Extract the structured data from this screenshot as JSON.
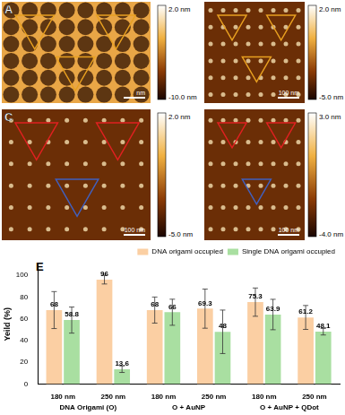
{
  "panels": [
    {
      "label": "A",
      "images": [
        {
          "colorbar": {
            "top": "2.0 nm",
            "bottom": "-10.0 nm"
          },
          "scale_bar": "nm"
        },
        {
          "colorbar": {
            "top": "2.0 nm",
            "bottom": "-5.0 nm"
          },
          "scale_bar": "100 nm"
        }
      ]
    },
    {
      "label": "C",
      "images": [
        {
          "colorbar": {
            "top": "2.0 nm",
            "bottom": "-5.0 nm"
          },
          "scale_bar": "100 nm"
        },
        {
          "colorbar": {
            "top": "3.0 nm",
            "bottom": "-4.0 nm"
          },
          "scale_bar": "100 nm"
        }
      ]
    }
  ],
  "chart_label": "E",
  "chart_data": {
    "type": "bar",
    "categories": [
      "180 nm",
      "250 nm",
      "180 nm",
      "250 nm",
      "180 nm",
      "250 nm"
    ],
    "groups": [
      "DNA Origami (O)",
      "O + AuNP",
      "O + AuNP + QDot"
    ],
    "y_label": "Yeild (%)",
    "ylim": [
      0,
      110
    ],
    "yticks": [
      0,
      20,
      40,
      60,
      80,
      100
    ],
    "grid": false,
    "legend": "top-right",
    "data_labels": true,
    "series": [
      {
        "name": "DNA origami occupied",
        "color": "#fbcfa3",
        "values": [
          68,
          96,
          68,
          69.3,
          75.3,
          61.2
        ],
        "errors": [
          17,
          4,
          12,
          18,
          13,
          11
        ]
      },
      {
        "name": "Single DNA origami occupied",
        "color": "#a9dfa1",
        "values": [
          58.8,
          13.6,
          66,
          48,
          63.9,
          48.1
        ],
        "errors": [
          12,
          3,
          12,
          20,
          14,
          3
        ]
      }
    ]
  }
}
